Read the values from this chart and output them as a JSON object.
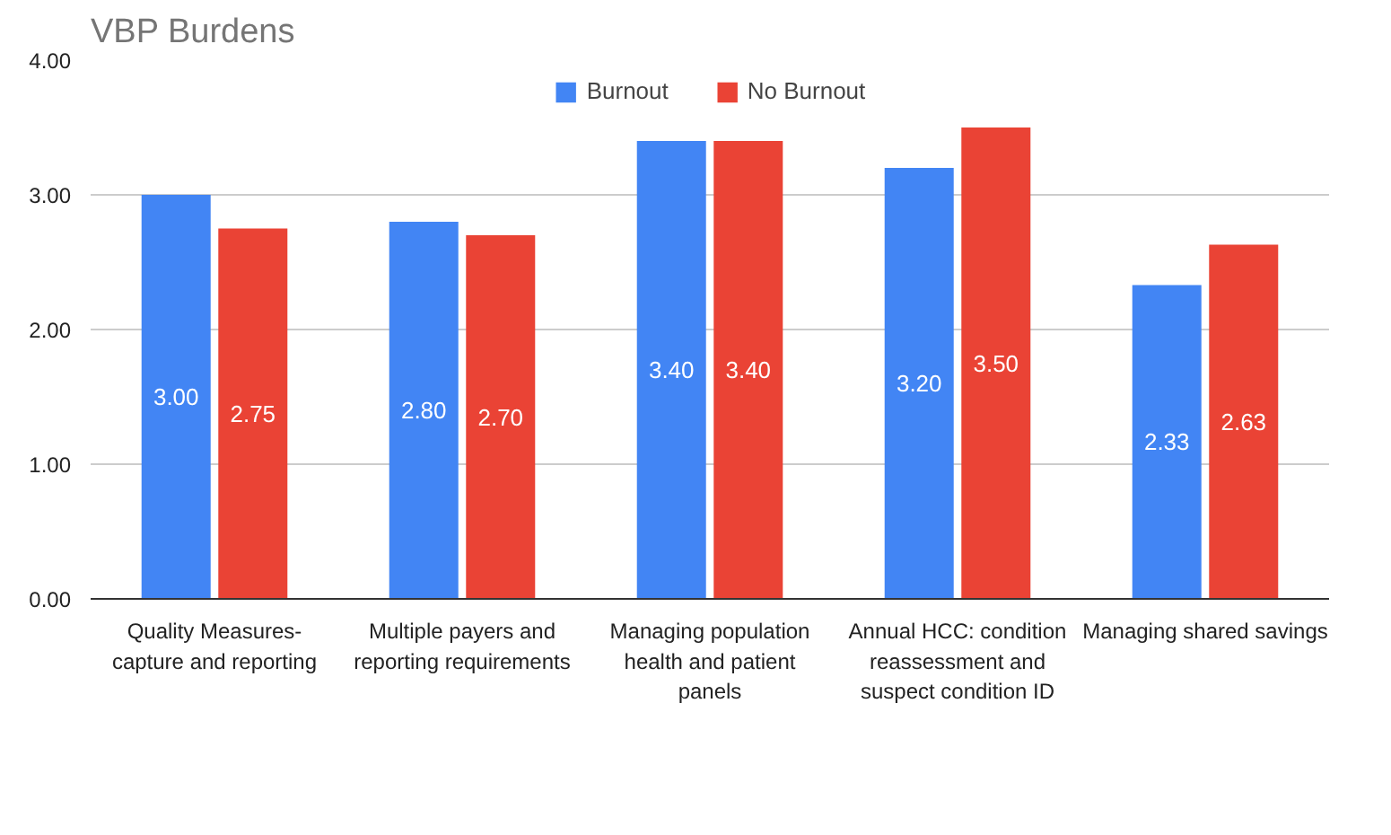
{
  "chart_data": {
    "type": "bar",
    "title": "VBP Burdens",
    "categories": [
      "Quality Measures-capture and reporting",
      "Multiple payers and reporting requirements",
      "Managing population health and patient panels",
      "Annual HCC: condition reassessment and suspect condition ID",
      "Managing shared savings"
    ],
    "series": [
      {
        "name": "Burnout",
        "color": "#4285f4",
        "values": [
          3.0,
          2.8,
          3.4,
          3.2,
          2.33
        ],
        "value_labels": [
          "3.00",
          "2.80",
          "3.40",
          "3.20",
          "2.33"
        ]
      },
      {
        "name": "No Burnout",
        "color": "#ea4335",
        "values": [
          2.75,
          2.7,
          3.4,
          3.5,
          2.63
        ],
        "value_labels": [
          "2.75",
          "2.70",
          "3.40",
          "3.50",
          "2.63"
        ]
      }
    ],
    "ylim": [
      0,
      4
    ],
    "yticks": [
      {
        "value": 0,
        "label": "0.00"
      },
      {
        "value": 1,
        "label": "1.00"
      },
      {
        "value": 2,
        "label": "2.00"
      },
      {
        "value": 3,
        "label": "3.00"
      },
      {
        "value": 4,
        "label": "4.00"
      }
    ],
    "grid": "y",
    "legend": "top"
  }
}
